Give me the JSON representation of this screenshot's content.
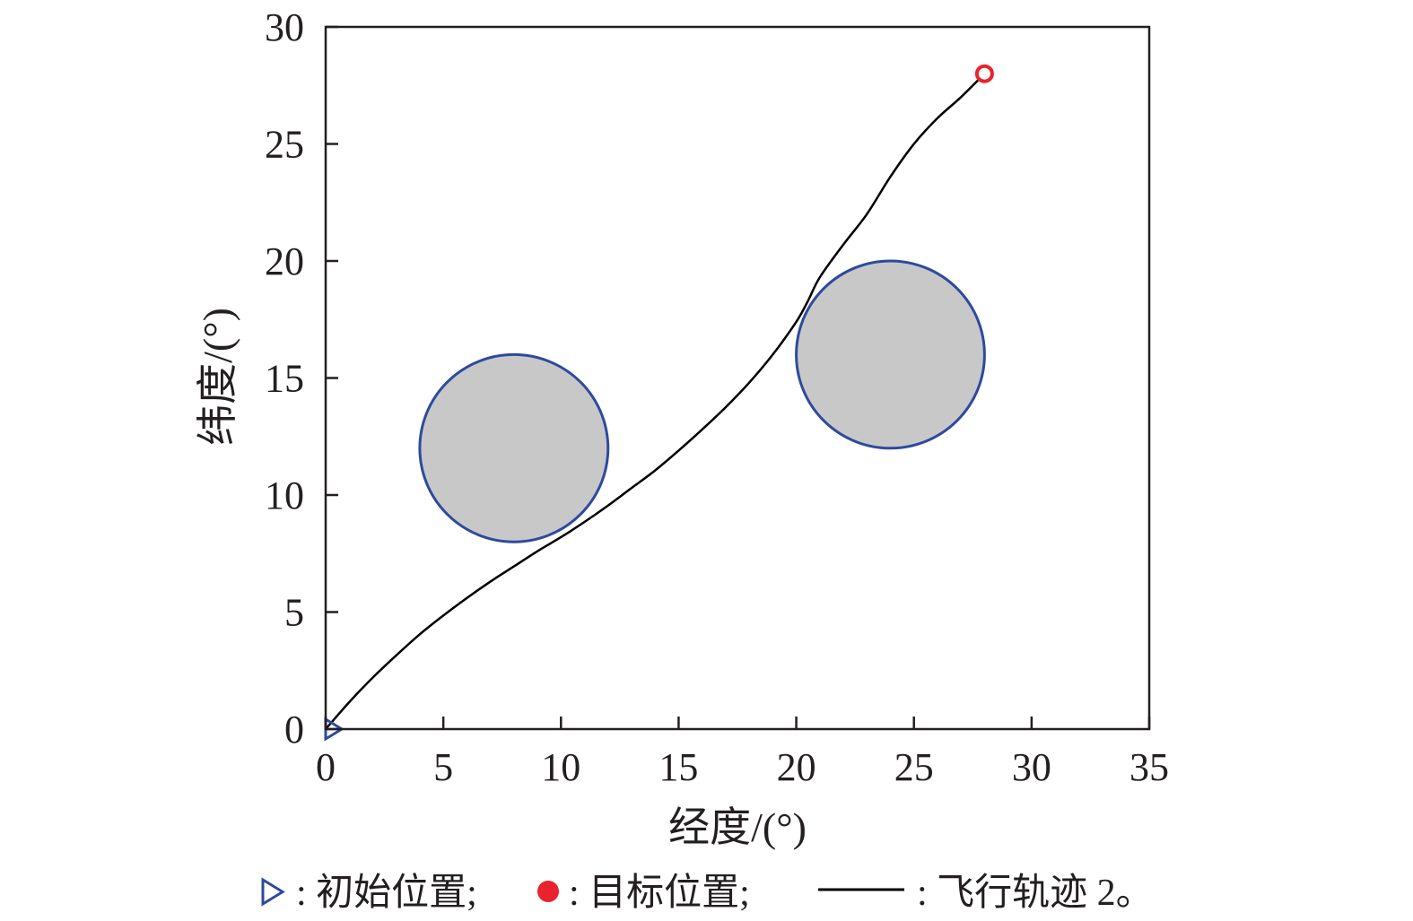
{
  "chart_data": {
    "type": "scatter",
    "title": "",
    "xlabel": "经度/(°)",
    "ylabel": "纬度/(°)",
    "xlim": [
      0,
      35
    ],
    "ylim": [
      0,
      30
    ],
    "xticks": [
      0,
      5,
      10,
      15,
      20,
      25,
      30,
      35
    ],
    "yticks": [
      0,
      5,
      10,
      15,
      20,
      25,
      30
    ],
    "grid": false,
    "legend_position": "bottom",
    "obstacles": [
      {
        "cx": 8,
        "cy": 12,
        "r": 4,
        "fill": "#c8c8c8",
        "stroke": "#2e4a9e"
      },
      {
        "cx": 24,
        "cy": 16,
        "r": 4,
        "fill": "#c8c8c8",
        "stroke": "#2e4a9e"
      }
    ],
    "start": {
      "x": 0,
      "y": 0,
      "color": "#2e4a9e"
    },
    "target": {
      "x": 28,
      "y": 28,
      "color": "#e8232b"
    },
    "series": [
      {
        "line_color": "#000000",
        "x": [
          0,
          1,
          2,
          3,
          4,
          5,
          6,
          7,
          8,
          9,
          10,
          11,
          12,
          13,
          14,
          15,
          16,
          17,
          18,
          19,
          20,
          20.5,
          21,
          22,
          23,
          24,
          25,
          26,
          27,
          28
        ],
        "y": [
          0,
          1.15,
          2.2,
          3.15,
          4.05,
          4.85,
          5.6,
          6.3,
          6.95,
          7.6,
          8.2,
          8.85,
          9.55,
          10.3,
          11.05,
          11.9,
          12.8,
          13.75,
          14.8,
          16.0,
          17.4,
          18.3,
          19.3,
          20.7,
          22.0,
          23.6,
          25.0,
          26.1,
          27.0,
          28.0
        ]
      }
    ]
  },
  "legend": {
    "start_label": ": 初始位置;",
    "target_label": ": 目标位置;",
    "path_label": ": 飞行轨迹 2。"
  }
}
